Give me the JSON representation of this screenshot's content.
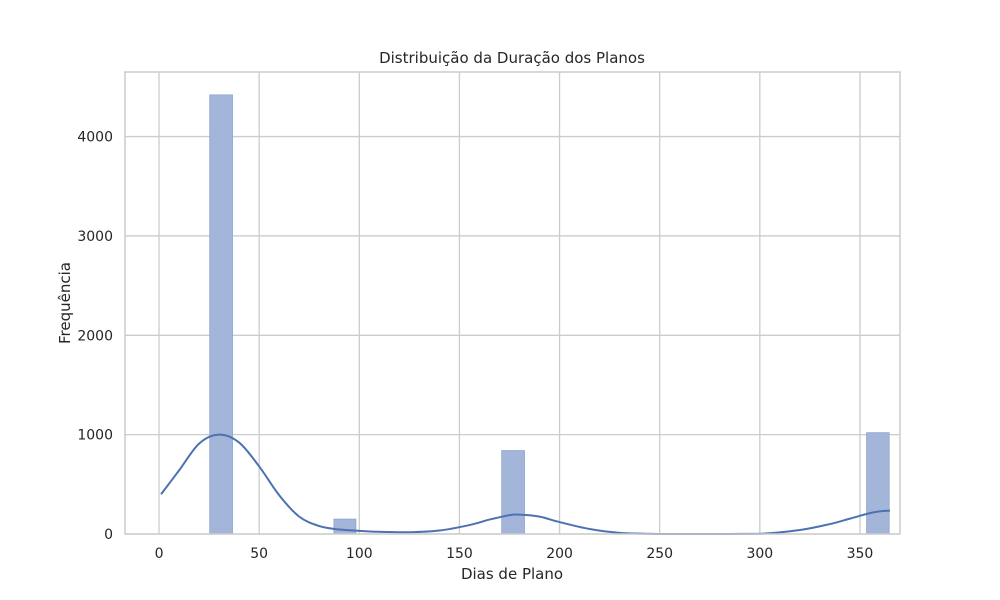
{
  "chart_data": {
    "type": "bar",
    "subtype": "histogram_with_kde",
    "title": "Distribuição da Duração dos Planos",
    "xlabel": "Dias de Plano",
    "ylabel": "Frequência",
    "xlim": [
      -17,
      370
    ],
    "ylim": [
      0,
      4650
    ],
    "xticks": [
      0,
      50,
      100,
      150,
      200,
      250,
      300,
      350
    ],
    "yticks": [
      0,
      1000,
      2000,
      3000,
      4000
    ],
    "grid": true,
    "legend": "none",
    "bins": [
      {
        "x0": 25.3,
        "x1": 36.7,
        "count": 4420
      },
      {
        "x0": 87.3,
        "x1": 98.3,
        "count": 150
      },
      {
        "x0": 171.1,
        "x1": 182.5,
        "count": 840
      },
      {
        "x0": 353.3,
        "x1": 364.6,
        "count": 1020
      }
    ],
    "kde": {
      "x": [
        1,
        10,
        20,
        30,
        40,
        50,
        60,
        70,
        80,
        90,
        100,
        110,
        125,
        140,
        155,
        165,
        175,
        180,
        190,
        200,
        215,
        230,
        250,
        275,
        300,
        320,
        335,
        345,
        355,
        360,
        365
      ],
      "y": [
        400,
        640,
        910,
        1000,
        920,
        680,
        390,
        175,
        80,
        45,
        32,
        22,
        18,
        35,
        90,
        145,
        190,
        195,
        175,
        120,
        50,
        12,
        0,
        0,
        2,
        40,
        100,
        155,
        210,
        228,
        235
      ]
    },
    "colors": {
      "bar_fill": "#a3b5d9",
      "bar_stroke": "#8fa5d0",
      "kde_line": "#4c72b0",
      "grid": "#cccccc",
      "frame": "#cccccc"
    }
  }
}
